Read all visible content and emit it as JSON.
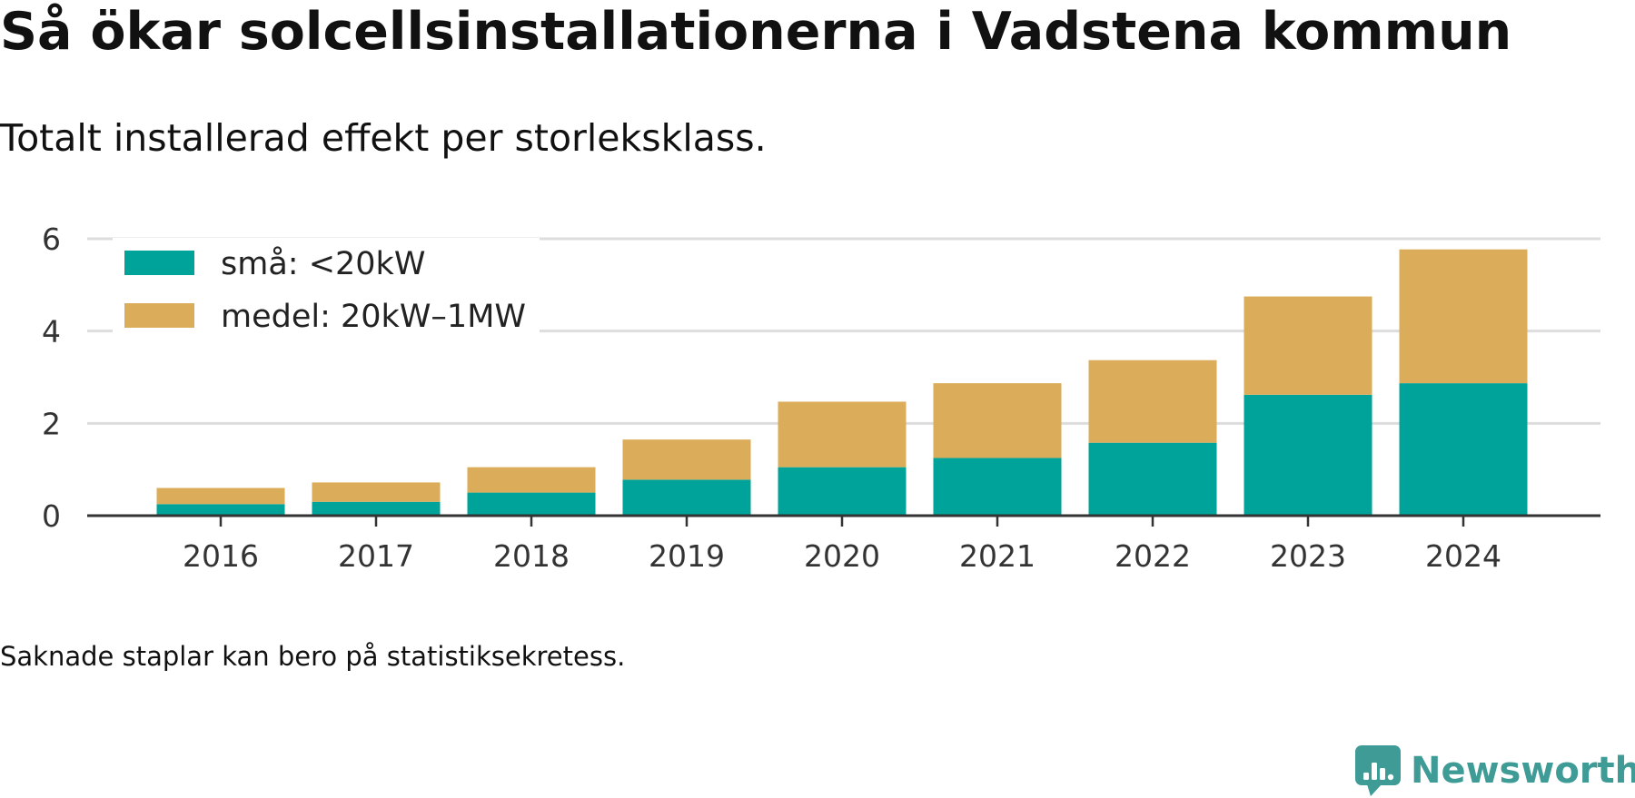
{
  "title": "Så ökar solcellsinstallationerna i Vadstena kommun",
  "subtitle": "Totalt installerad effekt per storleksklass.",
  "note": "Saknade staplar kan bero på statistiksekretess.",
  "brand": {
    "name": "Newsworthy",
    "color": "#3e9b96"
  },
  "chart_data": {
    "type": "bar",
    "stacked": true,
    "categories": [
      "2016",
      "2017",
      "2018",
      "2019",
      "2020",
      "2021",
      "2022",
      "2023",
      "2024"
    ],
    "series": [
      {
        "name": "små: <20kW",
        "color": "#00a39a",
        "values": [
          0.25,
          0.3,
          0.5,
          0.78,
          1.05,
          1.25,
          1.58,
          2.62,
          2.87
        ]
      },
      {
        "name": "medel: 20kW–1MW",
        "color": "#dbad5a",
        "values": [
          0.35,
          0.42,
          0.55,
          0.87,
          1.42,
          1.62,
          1.79,
          2.13,
          2.9
        ]
      }
    ],
    "yticks": [
      0,
      2,
      4,
      6
    ],
    "ylim": [
      0,
      6.2
    ],
    "xlabel": "",
    "ylabel": "",
    "grid": true,
    "legend": "top-left"
  }
}
